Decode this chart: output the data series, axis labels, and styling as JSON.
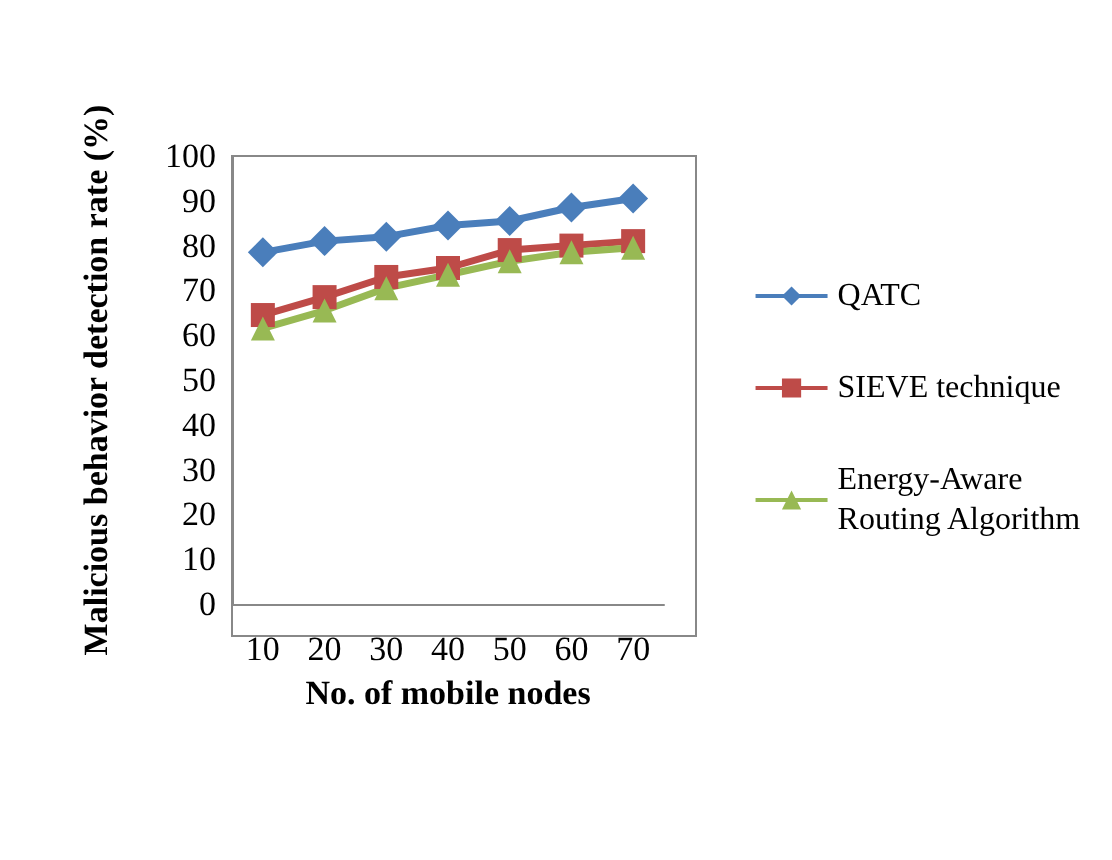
{
  "chart_data": {
    "type": "line",
    "xlabel": "No. of mobile nodes",
    "ylabel": "Malicious behavior detection rate (%)",
    "categories": [
      "10",
      "20",
      "30",
      "40",
      "50",
      "60",
      "70"
    ],
    "series": [
      {
        "name": "QATC",
        "color": "#4a7ebb",
        "marker": "diamond",
        "values": [
          78.5,
          81,
          82,
          84.5,
          85.5,
          88.5,
          90.5
        ]
      },
      {
        "name": "SIEVE technique",
        "color": "#be4b48",
        "marker": "square",
        "values": [
          64.5,
          68.5,
          73,
          75,
          79,
          80,
          81
        ]
      },
      {
        "name": "Energy-Aware\nRouting Algorithm",
        "color": "#98b954",
        "marker": "triangle",
        "values": [
          61.5,
          65.5,
          70.5,
          73.5,
          76.5,
          78.5,
          79.5
        ]
      }
    ],
    "ylim": [
      0,
      100
    ],
    "yticks": [
      0,
      10,
      20,
      30,
      40,
      50,
      60,
      70,
      80,
      90,
      100
    ],
    "grid": false,
    "legend": "right"
  }
}
